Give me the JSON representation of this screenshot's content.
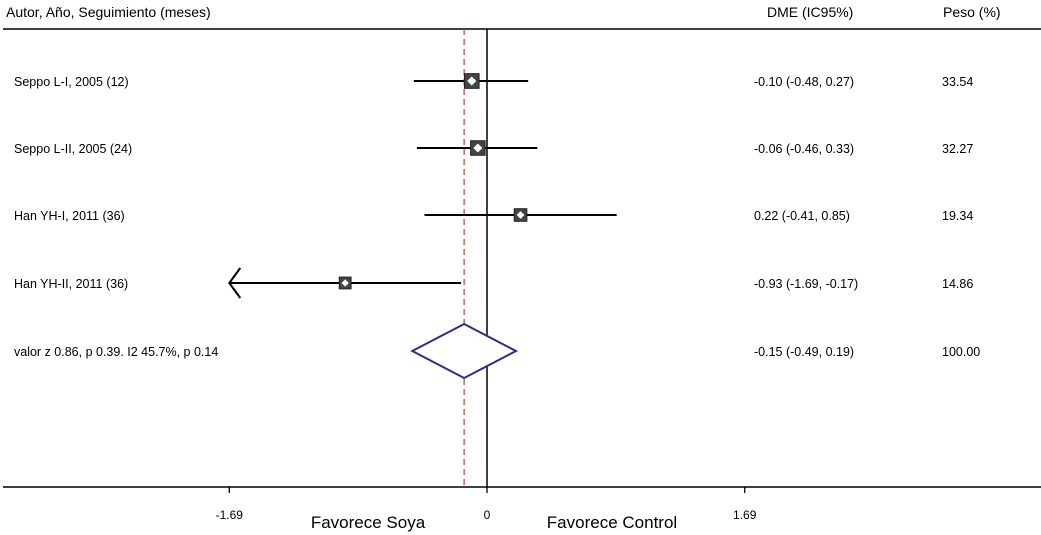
{
  "header": {
    "study_col": "Autor, Año, Seguimiento (meses)",
    "effect_col": "DME (IC95%)",
    "weight_col": "Peso (%)"
  },
  "chart_data": {
    "type": "forest",
    "xlim": [
      -1.69,
      1.69
    ],
    "ticks": [
      {
        "value": -1.69,
        "label": "-1.69"
      },
      {
        "value": 0,
        "label": "0"
      },
      {
        "value": 1.69,
        "label": "1.69"
      }
    ],
    "null_line": 0,
    "pooled_line": -0.15,
    "x_labels": {
      "left": "Favorece Soya",
      "right": "Favorece Control"
    },
    "studies": [
      {
        "label": "Seppo L-I, 2005 (12)",
        "est": -0.1,
        "lo": -0.48,
        "hi": 0.27,
        "ci_text": "-0.10 (-0.48, 0.27)",
        "weight": 33.54,
        "weight_text": "33.54"
      },
      {
        "label": "Seppo L-II, 2005 (24)",
        "est": -0.06,
        "lo": -0.46,
        "hi": 0.33,
        "ci_text": "-0.06 (-0.46, 0.33)",
        "weight": 32.27,
        "weight_text": "32.27"
      },
      {
        "label": "Han YH-I, 2011 (36)",
        "est": 0.22,
        "lo": -0.41,
        "hi": 0.85,
        "ci_text": "0.22 (-0.41, 0.85)",
        "weight": 19.34,
        "weight_text": "19.34"
      },
      {
        "label": "Han YH-II, 2011 (36)",
        "est": -0.93,
        "lo": -1.69,
        "hi": -0.17,
        "ci_text": "-0.93 (-1.69, -0.17)",
        "weight": 14.86,
        "weight_text": "14.86",
        "truncated_left": true
      }
    ],
    "overall": {
      "label": "valor z 0.86, p 0.39. I2 45.7%, p 0.14",
      "est": -0.15,
      "lo": -0.49,
      "hi": 0.19,
      "ci_text": "-0.15 (-0.49, 0.19)",
      "weight_text": "100.00"
    },
    "colors": {
      "pooled_line": "#b5524a",
      "diamond": "#2e2f7a",
      "marker": "#444444"
    }
  }
}
